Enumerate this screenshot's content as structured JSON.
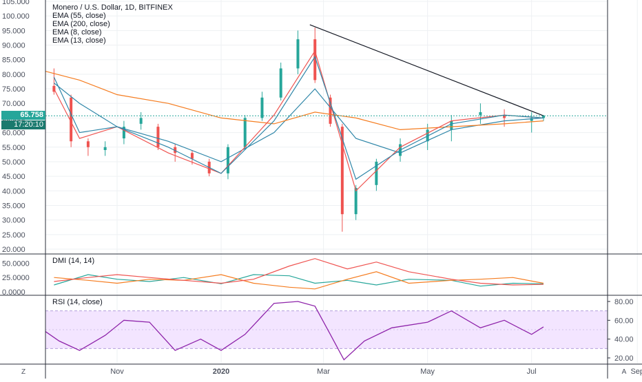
{
  "header": {
    "title": "Monero / U.S. Dollar, 1D, BITFINEX",
    "indicators": [
      "EMA (55, close)",
      "EMA (200, close)",
      "EMA (8, close)",
      "EMA (13, close)"
    ]
  },
  "price_tag": {
    "value": "65.758",
    "countdown": "17:20:10"
  },
  "price_axis_ticks": [
    "105.000",
    "100.000",
    "95.000",
    "90.000",
    "85.000",
    "80.000",
    "75.000",
    "70.000",
    "65.000",
    "60.000",
    "55.000",
    "50.000",
    "45.000",
    "40.000",
    "35.000",
    "30.000",
    "25.000",
    "20.000"
  ],
  "dmi": {
    "label": "DMI (14, 14)",
    "ticks": [
      "50.0000",
      "25.0000",
      "0.0000"
    ]
  },
  "rsi": {
    "label": "RSI (14, close)",
    "ticks": [
      "80.00",
      "60.00",
      "40.00",
      "20.00"
    ]
  },
  "time_axis": {
    "labels": [
      "Nov",
      "2020",
      "Mar",
      "May",
      "Jul",
      "Sep"
    ]
  },
  "bottom_buttons": {
    "left": "Z",
    "right": "A"
  },
  "colors": {
    "up": "#26a69a",
    "down": "#ef5350",
    "ema55": "#2e86a8",
    "ema200": "#f57c1f",
    "ema8": "#ef5350",
    "ema13": "#2e86a8",
    "trendline": "#131722",
    "rsi": "#8e24aa",
    "rsi_band": "#f3e5ff",
    "tag_bg": "#26a69a",
    "countdown_bg": "#1a7a6e",
    "dmi_plus": "#26a69a",
    "dmi_minus": "#f57c1f",
    "adx": "#ef5350"
  },
  "chart_data": [
    {
      "type": "candlestick",
      "title": "Monero / U.S. Dollar, 1D, BITFINEX",
      "x_range": [
        "2019-09-20",
        "2020-07-08"
      ],
      "ylim": [
        20,
        105
      ],
      "grid": true,
      "series": [
        {
          "name": "EMA (55, close)",
          "x": [
            "2019-09-25",
            "2019-10-10",
            "2019-11-01",
            "2019-12-01",
            "2020-01-01",
            "2020-02-01",
            "2020-02-25",
            "2020-03-20",
            "2020-04-15",
            "2020-05-15",
            "2020-06-15",
            "2020-07-08"
          ],
          "values": [
            77,
            70,
            62,
            57,
            50,
            60,
            75,
            58,
            53,
            61,
            64,
            65
          ]
        },
        {
          "name": "EMA (200, close)",
          "x": [
            "2019-09-20",
            "2019-10-10",
            "2019-11-01",
            "2019-12-01",
            "2020-01-01",
            "2020-02-01",
            "2020-02-25",
            "2020-03-20",
            "2020-04-15",
            "2020-05-15",
            "2020-06-15",
            "2020-07-08"
          ],
          "values": [
            81,
            78,
            73,
            70,
            65,
            63,
            67,
            65,
            61,
            62,
            63,
            64
          ]
        },
        {
          "name": "EMA (8, close)",
          "x": [
            "2019-09-25",
            "2019-10-10",
            "2019-11-01",
            "2019-12-01",
            "2020-01-01",
            "2020-02-01",
            "2020-02-25",
            "2020-03-20",
            "2020-04-15",
            "2020-05-15",
            "2020-06-15",
            "2020-07-08"
          ],
          "values": [
            75,
            58,
            62,
            53,
            46,
            66,
            88,
            40,
            55,
            64,
            66,
            65
          ]
        },
        {
          "name": "EMA (13, close)",
          "x": [
            "2019-09-25",
            "2019-10-10",
            "2019-11-01",
            "2019-12-01",
            "2020-01-01",
            "2020-02-01",
            "2020-02-25",
            "2020-03-20",
            "2020-04-15",
            "2020-05-15",
            "2020-06-15",
            "2020-07-08"
          ],
          "values": [
            79,
            60,
            62,
            55,
            46,
            64,
            86,
            44,
            54,
            63,
            66,
            65
          ]
        }
      ],
      "candles": {
        "x": [
          "2019-09-25",
          "2019-10-05",
          "2019-10-15",
          "2019-10-25",
          "2019-11-05",
          "2019-11-15",
          "2019-11-25",
          "2019-12-05",
          "2019-12-15",
          "2019-12-25",
          "2020-01-05",
          "2020-01-15",
          "2020-01-25",
          "2020-02-05",
          "2020-02-15",
          "2020-02-25",
          "2020-03-05",
          "2020-03-12",
          "2020-03-20",
          "2020-04-01",
          "2020-04-15",
          "2020-05-01",
          "2020-05-15",
          "2020-06-01",
          "2020-06-15",
          "2020-07-01",
          "2020-07-08"
        ],
        "open": [
          76,
          72,
          57,
          54,
          58,
          63,
          62,
          55,
          53,
          50,
          46,
          55,
          65,
          72,
          82,
          92,
          72,
          62,
          32,
          42,
          52,
          57,
          61,
          66,
          66,
          64,
          65
        ],
        "close": [
          74,
          57,
          55,
          55,
          62,
          65,
          55,
          53,
          51,
          46,
          55,
          65,
          72,
          82,
          92,
          78,
          63,
          32,
          41,
          50,
          56,
          61,
          64,
          67,
          65,
          65,
          65.758
        ],
        "high": [
          82,
          73,
          58,
          57,
          64,
          67,
          63,
          56,
          54,
          51,
          56,
          66,
          74,
          84,
          95,
          96,
          73,
          63,
          42,
          51,
          58,
          63,
          66,
          70,
          68,
          67,
          66
        ],
        "low": [
          73,
          55,
          52,
          52,
          56,
          61,
          54,
          50,
          49,
          45,
          44,
          54,
          64,
          71,
          80,
          77,
          62,
          26,
          30,
          40,
          50,
          54,
          57,
          63,
          62,
          60,
          64
        ]
      },
      "trendline": {
        "x": [
          "2020-02-22",
          "2020-07-08"
        ],
        "values": [
          97,
          65.758
        ]
      },
      "annotations": [
        "65.758",
        "17:20:10"
      ]
    },
    {
      "type": "line",
      "title": "DMI (14, 14)",
      "ylim": [
        0,
        60
      ],
      "x": [
        "2019-09-25",
        "2019-10-15",
        "2019-11-01",
        "2019-11-20",
        "2019-12-10",
        "2020-01-01",
        "2020-01-20",
        "2020-02-10",
        "2020-02-25",
        "2020-03-15",
        "2020-04-01",
        "2020-04-20",
        "2020-05-15",
        "2020-06-01",
        "2020-06-20",
        "2020-07-08"
      ],
      "series": [
        {
          "name": "+DI",
          "values": [
            12,
            30,
            22,
            18,
            25,
            14,
            30,
            28,
            15,
            20,
            12,
            22,
            20,
            10,
            15,
            14
          ]
        },
        {
          "name": "-DI",
          "values": [
            25,
            20,
            15,
            22,
            20,
            30,
            15,
            8,
            5,
            22,
            35,
            15,
            20,
            22,
            25,
            15
          ]
        },
        {
          "name": "ADX",
          "values": [
            18,
            25,
            30,
            25,
            20,
            15,
            22,
            45,
            58,
            40,
            52,
            35,
            22,
            15,
            12,
            13
          ]
        }
      ]
    },
    {
      "type": "line",
      "title": "RSI (14, close)",
      "ylim": [
        15,
        85
      ],
      "bands": [
        30,
        70
      ],
      "x": [
        "2019-09-20",
        "2019-09-28",
        "2019-10-10",
        "2019-10-25",
        "2019-11-05",
        "2019-11-20",
        "2019-12-05",
        "2019-12-20",
        "2020-01-01",
        "2020-01-15",
        "2020-02-01",
        "2020-02-15",
        "2020-02-25",
        "2020-03-05",
        "2020-03-13",
        "2020-03-25",
        "2020-04-10",
        "2020-05-01",
        "2020-05-15",
        "2020-06-01",
        "2020-06-15",
        "2020-07-01",
        "2020-07-08"
      ],
      "series": [
        {
          "name": "RSI",
          "values": [
            48,
            38,
            28,
            44,
            60,
            58,
            28,
            40,
            28,
            45,
            78,
            80,
            75,
            45,
            18,
            38,
            52,
            58,
            70,
            52,
            60,
            45,
            53
          ]
        }
      ]
    }
  ]
}
